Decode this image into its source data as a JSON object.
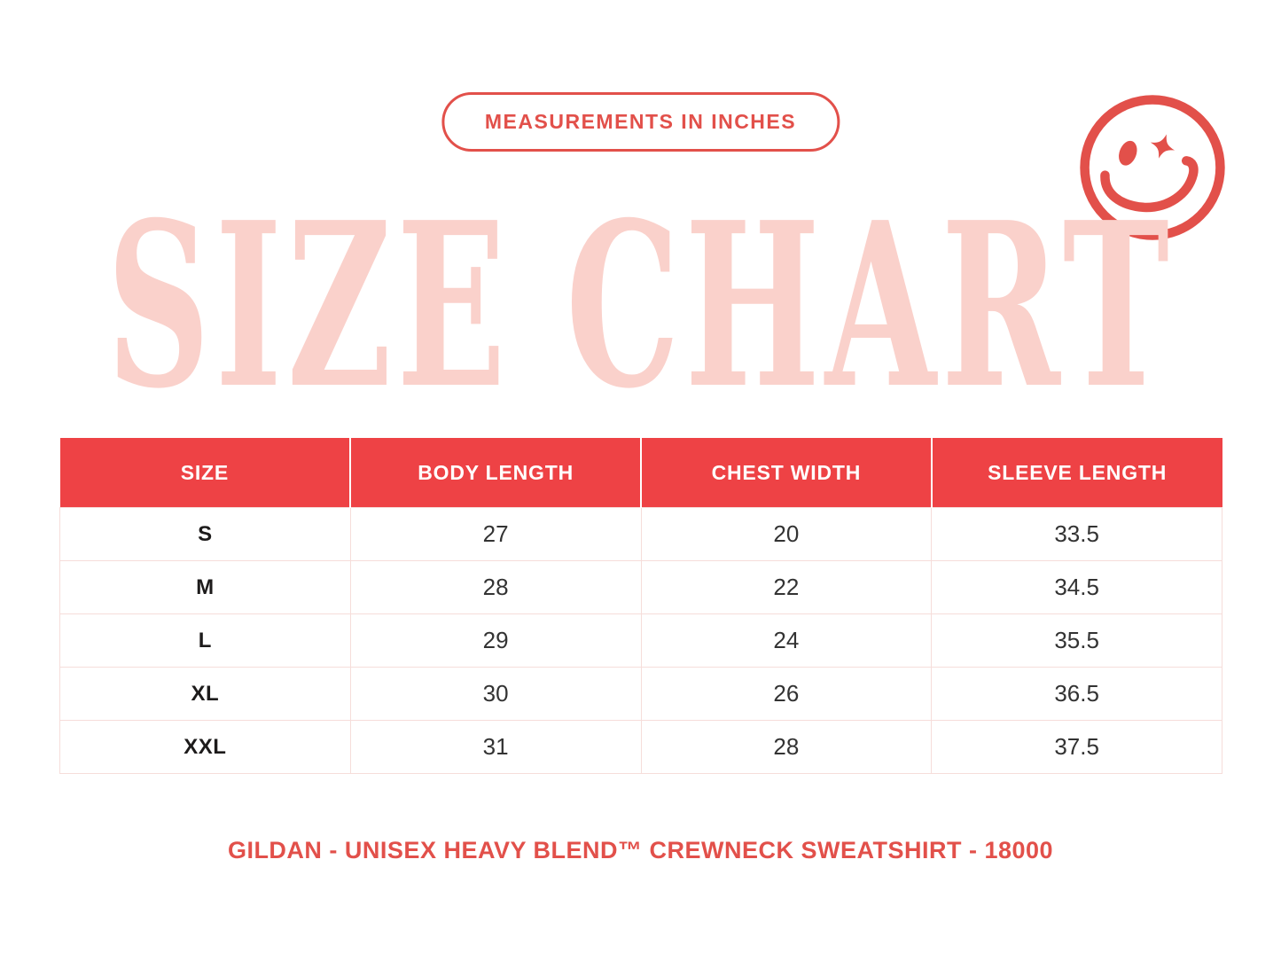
{
  "colors": {
    "background": "#FFFFFF",
    "header_red": "#EE4245",
    "accent_red": "#E2504A",
    "title_pink": "#FAD1CB",
    "row_border": "#F6DDDA",
    "cell_text": "#333333"
  },
  "badge": {
    "label": "MEASUREMENTS IN INCHES"
  },
  "title": {
    "text": "SIZE CHART"
  },
  "icons": {
    "smiley": "winking-smiley-face-with-sparkle-eye"
  },
  "table": {
    "columns": [
      "SIZE",
      "BODY LENGTH",
      "CHEST WIDTH",
      "SLEEVE LENGTH"
    ],
    "rows": [
      {
        "size": "S",
        "body_length": "27",
        "chest_width": "20",
        "sleeve_length": "33.5"
      },
      {
        "size": "M",
        "body_length": "28",
        "chest_width": "22",
        "sleeve_length": "34.5"
      },
      {
        "size": "L",
        "body_length": "29",
        "chest_width": "24",
        "sleeve_length": "35.5"
      },
      {
        "size": "XL",
        "body_length": "30",
        "chest_width": "26",
        "sleeve_length": "36.5"
      },
      {
        "size": "XXL",
        "body_length": "31",
        "chest_width": "28",
        "sleeve_length": "37.5"
      }
    ]
  },
  "footer": {
    "text": "GILDAN - UNISEX HEAVY BLEND™ CREWNECK SWEATSHIRT - 18000"
  },
  "chart_data": {
    "type": "table",
    "title": "SIZE CHART",
    "subtitle": "MEASUREMENTS IN INCHES",
    "columns": [
      "SIZE",
      "BODY LENGTH",
      "CHEST WIDTH",
      "SLEEVE LENGTH"
    ],
    "rows": [
      [
        "S",
        27,
        20,
        33.5
      ],
      [
        "M",
        28,
        22,
        34.5
      ],
      [
        "L",
        29,
        24,
        35.5
      ],
      [
        "XL",
        30,
        26,
        36.5
      ],
      [
        "XXL",
        31,
        28,
        37.5
      ]
    ],
    "units": "inches",
    "footnote": "GILDAN - UNISEX HEAVY BLEND™ CREWNECK SWEATSHIRT - 18000"
  }
}
